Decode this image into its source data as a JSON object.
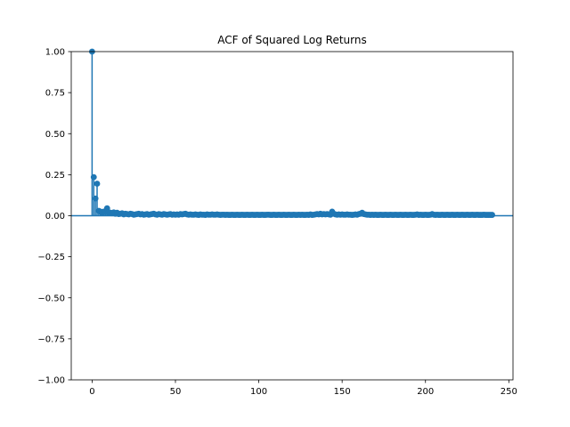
{
  "chart_data": {
    "type": "stem",
    "title": "ACF of Squared Log Returns",
    "xlabel": "",
    "ylabel": "",
    "xlim": [
      -12.5,
      252.5
    ],
    "ylim": [
      -1.0,
      1.0
    ],
    "x_ticks": [
      0,
      50,
      100,
      150,
      200,
      250
    ],
    "y_ticks": [
      -1.0,
      -0.75,
      -0.5,
      -0.25,
      0.0,
      0.25,
      0.5,
      0.75,
      1.0
    ],
    "x_tick_labels": [
      "0",
      "50",
      "100",
      "150",
      "200",
      "250"
    ],
    "y_tick_labels": [
      "−1.00",
      "−0.75",
      "−0.50",
      "−0.25",
      "0.00",
      "0.25",
      "0.50",
      "0.75",
      "1.00"
    ],
    "grid": false,
    "baseline": 0.0,
    "series_color": "#1f77b4",
    "series": [
      {
        "name": "",
        "x_start": 0,
        "values": [
          1.0,
          0.235,
          0.105,
          0.195,
          0.03,
          0.025,
          0.02,
          0.025,
          0.022,
          0.045,
          0.02,
          0.018,
          0.015,
          0.02,
          0.012,
          0.018,
          0.01,
          0.012,
          0.015,
          0.008,
          0.012,
          0.01,
          0.008,
          0.012,
          0.01,
          0.006,
          0.008,
          0.01,
          0.012,
          0.008,
          0.01,
          0.006,
          0.008,
          0.01,
          0.006,
          0.008,
          0.01,
          0.012,
          0.008,
          0.006,
          0.01,
          0.008,
          0.006,
          0.01,
          0.008,
          0.006,
          0.008,
          0.01,
          0.006,
          0.008,
          0.006,
          0.008,
          0.006,
          0.01,
          0.008,
          0.01,
          0.012,
          0.008,
          0.006,
          0.008,
          0.006,
          0.006,
          0.008,
          0.006,
          0.005,
          0.008,
          0.006,
          0.006,
          0.005,
          0.008,
          0.006,
          0.006,
          0.008,
          0.006,
          0.006,
          0.008,
          0.006,
          0.005,
          0.006,
          0.006,
          0.005,
          0.006,
          0.005,
          0.005,
          0.006,
          0.005,
          0.005,
          0.006,
          0.005,
          0.005,
          0.006,
          0.005,
          0.005,
          0.006,
          0.005,
          0.005,
          0.006,
          0.005,
          0.005,
          0.006,
          0.005,
          0.005,
          0.006,
          0.005,
          0.005,
          0.006,
          0.006,
          0.005,
          0.005,
          0.006,
          0.005,
          0.005,
          0.006,
          0.005,
          0.005,
          0.006,
          0.005,
          0.005,
          0.006,
          0.005,
          0.005,
          0.006,
          0.005,
          0.005,
          0.006,
          0.005,
          0.006,
          0.005,
          0.005,
          0.006,
          0.005,
          0.008,
          0.005,
          0.006,
          0.008,
          0.01,
          0.008,
          0.012,
          0.008,
          0.01,
          0.008,
          0.01,
          0.008,
          0.006,
          0.025,
          0.012,
          0.008,
          0.006,
          0.008,
          0.006,
          0.008,
          0.006,
          0.006,
          0.008,
          0.006,
          0.006,
          0.005,
          0.006,
          0.008,
          0.006,
          0.01,
          0.012,
          0.018,
          0.01,
          0.008,
          0.006,
          0.006,
          0.005,
          0.006,
          0.005,
          0.006,
          0.005,
          0.005,
          0.006,
          0.005,
          0.005,
          0.006,
          0.005,
          0.005,
          0.006,
          0.005,
          0.005,
          0.006,
          0.005,
          0.005,
          0.006,
          0.005,
          0.005,
          0.006,
          0.005,
          0.005,
          0.006,
          0.005,
          0.005,
          0.006,
          0.008,
          0.005,
          0.006,
          0.005,
          0.005,
          0.006,
          0.005,
          0.005,
          0.006,
          0.01,
          0.006,
          0.005,
          0.006,
          0.005,
          0.005,
          0.006,
          0.005,
          0.005,
          0.006,
          0.005,
          0.005,
          0.006,
          0.005,
          0.005,
          0.006,
          0.005,
          0.005,
          0.006,
          0.005,
          0.005,
          0.006,
          0.005,
          0.005,
          0.006,
          0.005,
          0.005,
          0.006,
          0.005,
          0.005,
          0.005,
          0.006,
          0.005,
          0.005,
          0.005,
          0.005,
          0.005
        ]
      }
    ]
  }
}
